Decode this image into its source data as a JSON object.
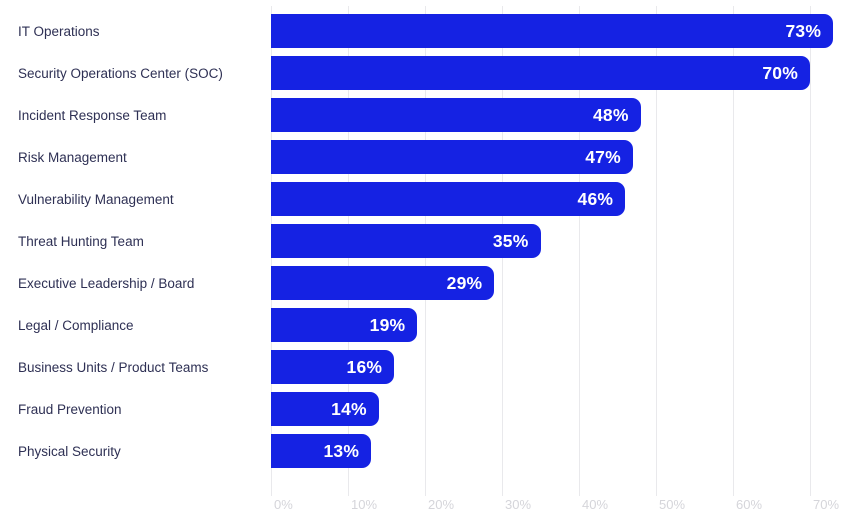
{
  "chart_data": {
    "type": "bar",
    "orientation": "horizontal",
    "title": "",
    "xlabel": "",
    "ylabel": "",
    "categories": [
      "IT Operations",
      "Security Operations Center (SOC)",
      "Incident Response Team",
      "Risk Management",
      "Vulnerability Management",
      "Threat Hunting Team",
      "Executive Leadership / Board",
      "Legal / Compliance",
      "Business Units / Product Teams",
      "Fraud Prevention",
      "Physical Security"
    ],
    "values": [
      73,
      70,
      48,
      47,
      46,
      35,
      29,
      19,
      16,
      14,
      13
    ],
    "value_labels": [
      "73%",
      "70%",
      "48%",
      "47%",
      "46%",
      "35%",
      "29%",
      "19%",
      "16%",
      "14%",
      "13%"
    ],
    "x_ticks": [
      "0%",
      "10%",
      "20%",
      "30%",
      "40%",
      "50%",
      "60%",
      "70%"
    ],
    "x_tick_values": [
      0,
      10,
      20,
      30,
      40,
      50,
      60,
      70
    ],
    "xlim": [
      0,
      77
    ],
    "grid": "vertical",
    "legend": "none",
    "colors": {
      "bar": "#1522e3",
      "value_label": "#ffffff",
      "category_label": "#2e3054",
      "tick_label": "#d5d5da",
      "gridline": "#e9e9ec",
      "background": "#ffffff"
    }
  }
}
